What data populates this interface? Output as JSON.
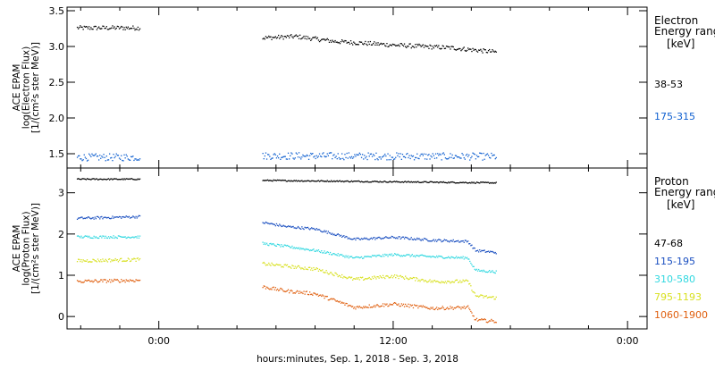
{
  "chart_data": [
    {
      "type": "scatter",
      "ylabel": [
        "ACE EPAM",
        "log(Electron Flux)",
        "[1/(cm²s ster MeV)]"
      ],
      "ylim": [
        1.3,
        3.55
      ],
      "yticks": [
        1.5,
        2.0,
        2.5,
        3.0,
        3.5
      ],
      "ytick_labels": [
        "1.5",
        "2.0",
        "2.5",
        "3.0",
        "3.5"
      ],
      "legend_title": [
        "Electron",
        "Energy range",
        "[keV]"
      ],
      "series": [
        {
          "name": "38-53",
          "color": "#000000",
          "segments": [
            {
              "x": [
                -4.2,
                -1.0
              ],
              "y": [
                3.26,
                3.26
              ],
              "noise": 0.03
            },
            {
              "x": [
                5.3,
                7.0,
                9.0,
                12.0,
                15.0,
                17.3
              ],
              "y": [
                3.12,
                3.14,
                3.07,
                3.02,
                2.98,
                2.92
              ],
              "noise": 0.03
            }
          ]
        },
        {
          "name": "175-315",
          "color": "#1060d0",
          "segments": [
            {
              "x": [
                -4.2,
                -1.0
              ],
              "y": [
                1.45,
                1.45
              ],
              "noise": 0.05
            },
            {
              "x": [
                5.3,
                17.3
              ],
              "y": [
                1.47,
                1.46
              ],
              "noise": 0.05
            }
          ]
        }
      ]
    },
    {
      "type": "scatter",
      "ylabel": [
        "ACE EPAM",
        "log(Proton Flux)",
        "[1/(cm²s ster MeV)]"
      ],
      "ylim": [
        -0.3,
        3.6
      ],
      "yticks": [
        0,
        1,
        2,
        3
      ],
      "ytick_labels": [
        "0",
        "1",
        "2",
        "3"
      ],
      "legend_title": [
        "Proton",
        "Energy range",
        "[keV]"
      ],
      "series": [
        {
          "name": "47-68",
          "color": "#000000",
          "segments": [
            {
              "x": [
                -4.2,
                -1.0
              ],
              "y": [
                3.33,
                3.33
              ],
              "noise": 0.015
            },
            {
              "x": [
                5.3,
                17.3
              ],
              "y": [
                3.3,
                3.24
              ],
              "noise": 0.015
            }
          ]
        },
        {
          "name": "115-195",
          "color": "#1a4fc0",
          "segments": [
            {
              "x": [
                -4.2,
                -1.0
              ],
              "y": [
                2.38,
                2.42
              ],
              "noise": 0.03
            },
            {
              "x": [
                5.3,
                6.5,
                8.0,
                10.0,
                12.0,
                14.0,
                15.8,
                16.2,
                17.3
              ],
              "y": [
                2.28,
                2.18,
                2.12,
                1.87,
                1.92,
                1.85,
                1.82,
                1.6,
                1.55
              ],
              "noise": 0.03
            }
          ]
        },
        {
          "name": "310-580",
          "color": "#30d8e0",
          "segments": [
            {
              "x": [
                -4.2,
                -1.0
              ],
              "y": [
                1.93,
                1.93
              ],
              "noise": 0.03
            },
            {
              "x": [
                5.3,
                6.5,
                8.0,
                10.0,
                12.0,
                14.0,
                15.8,
                16.2,
                17.3
              ],
              "y": [
                1.77,
                1.7,
                1.6,
                1.42,
                1.5,
                1.45,
                1.42,
                1.12,
                1.08
              ],
              "noise": 0.03
            }
          ]
        },
        {
          "name": "795-1193",
          "color": "#d8e020",
          "segments": [
            {
              "x": [
                -4.2,
                -1.0
              ],
              "y": [
                1.35,
                1.38
              ],
              "noise": 0.04
            },
            {
              "x": [
                5.3,
                6.5,
                8.0,
                10.0,
                12.0,
                14.0,
                15.8,
                16.2,
                17.3
              ],
              "y": [
                1.28,
                1.22,
                1.15,
                0.9,
                0.98,
                0.85,
                0.85,
                0.5,
                0.45
              ],
              "noise": 0.04
            }
          ]
        },
        {
          "name": "1060-1900",
          "color": "#e06010",
          "segments": [
            {
              "x": [
                -4.2,
                -1.0
              ],
              "y": [
                0.85,
                0.88
              ],
              "noise": 0.04
            },
            {
              "x": [
                5.3,
                6.5,
                8.0,
                10.0,
                12.0,
                14.0,
                15.8,
                16.2,
                17.3
              ],
              "y": [
                0.72,
                0.62,
                0.55,
                0.22,
                0.3,
                0.2,
                0.22,
                -0.08,
                -0.12
              ],
              "noise": 0.04
            }
          ]
        }
      ]
    }
  ],
  "x_axis": {
    "label": "hours:minutes, Sep.  1, 2018 - Sep.  3, 2018",
    "xlim": [
      -4.7,
      25.0
    ],
    "major_ticks": [
      0,
      12,
      24
    ],
    "tick_labels": [
      "0:00",
      "12:00",
      "0:00"
    ],
    "minor_step": 2
  }
}
